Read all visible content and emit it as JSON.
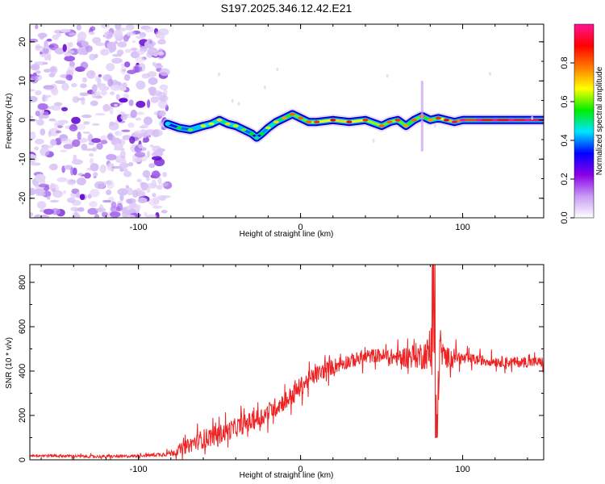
{
  "title": "S197.2025.346.12.42.E21",
  "chart_data": [
    {
      "type": "heatmap",
      "name": "spectrogram",
      "xlabel": "Height of straight line (km)",
      "ylabel": "Frequency (Hz)",
      "xlim": [
        -167,
        150
      ],
      "ylim": [
        -25,
        24.5
      ],
      "x_ticks": [
        -100,
        0,
        100
      ],
      "y_ticks": [
        -20,
        -10,
        0,
        10,
        20
      ],
      "x_tick_labels": [
        "-100",
        "0",
        "100"
      ],
      "y_tick_labels": [
        "-20",
        "-10",
        "0",
        "10",
        "20"
      ],
      "noise_region_x": [
        -167,
        -82
      ],
      "signal_trace": {
        "x": [
          -82,
          -75,
          -68,
          -60,
          -55,
          -50,
          -45,
          -40,
          -35,
          -30,
          -27,
          -24,
          -20,
          -15,
          -10,
          -5,
          0,
          5,
          10,
          20,
          30,
          40,
          50,
          55,
          60,
          65,
          70,
          75,
          80,
          85,
          90,
          95,
          100,
          110,
          120,
          130,
          140,
          150
        ],
        "freq": [
          -1,
          -2,
          -2.5,
          -1.5,
          -1,
          0,
          -1,
          -1.5,
          -2.5,
          -3.5,
          -4.5,
          -3.5,
          -2,
          -0.5,
          0.5,
          1.5,
          0.5,
          -0.5,
          -0.5,
          0,
          -0.5,
          0,
          -1.5,
          -0.5,
          0,
          -1.5,
          0,
          1,
          0,
          0.5,
          0,
          -0.5,
          0,
          0,
          0,
          0,
          0,
          0
        ],
        "amplitude": [
          0.25,
          0.35,
          0.4,
          0.45,
          0.45,
          0.5,
          0.5,
          0.45,
          0.4,
          0.35,
          0.3,
          0.35,
          0.45,
          0.5,
          0.55,
          0.6,
          0.6,
          0.6,
          0.65,
          0.7,
          0.7,
          0.65,
          0.6,
          0.6,
          0.65,
          0.55,
          0.6,
          0.6,
          0.55,
          0.65,
          0.7,
          0.75,
          0.8,
          0.85,
          0.9,
          0.9,
          0.95,
          0.95
        ]
      },
      "colorbar": {
        "label": "Normalized spectral amplitude",
        "range": [
          0,
          1
        ],
        "ticks": [
          "0.0",
          "0.2",
          "0.4",
          "0.6",
          "0.8"
        ],
        "tick_values": [
          0,
          0.2,
          0.4,
          0.6,
          0.8
        ],
        "colors": [
          "#ffffff",
          "#c89bf5",
          "#8a00e6",
          "#0000ff",
          "#00e5ff",
          "#00ee00",
          "#ffff00",
          "#ff7a00",
          "#ff0000",
          "#ff1493"
        ]
      },
      "colors": {
        "noise": "#9b59e8",
        "noise_dark": "#6a0fd0",
        "noise_light": "#d6bff5"
      }
    },
    {
      "type": "line",
      "name": "snr",
      "xlabel": "Height of straight line (km)",
      "ylabel": "SNR (10 * v/v)",
      "xlim": [
        -167,
        150
      ],
      "ylim": [
        0,
        880
      ],
      "x_ticks": [
        -100,
        0,
        100
      ],
      "y_ticks": [
        0,
        200,
        400,
        600,
        800
      ],
      "x_tick_labels": [
        "-100",
        "0",
        "100"
      ],
      "y_tick_labels": [
        "0",
        "200",
        "400",
        "600",
        "800"
      ],
      "color": "#ee2222",
      "series": [
        {
          "name": "SNR",
          "x": [
            -167,
            -150,
            -130,
            -110,
            -95,
            -85,
            -80,
            -75,
            -70,
            -65,
            -60,
            -55,
            -50,
            -45,
            -40,
            -35,
            -30,
            -25,
            -20,
            -15,
            -10,
            -5,
            0,
            5,
            10,
            15,
            20,
            25,
            30,
            35,
            40,
            45,
            50,
            55,
            60,
            65,
            70,
            75,
            78,
            80,
            82,
            83,
            84,
            86,
            88,
            90,
            95,
            100,
            110,
            120,
            130,
            140,
            150
          ],
          "y": [
            20,
            18,
            15,
            15,
            20,
            25,
            30,
            45,
            60,
            80,
            95,
            105,
            115,
            130,
            145,
            160,
            175,
            190,
            215,
            240,
            265,
            290,
            330,
            360,
            385,
            405,
            420,
            435,
            445,
            455,
            460,
            470,
            470,
            465,
            460,
            465,
            470,
            470,
            480,
            470,
            500,
            480,
            160,
            520,
            470,
            460,
            470,
            455,
            450,
            445,
            440,
            440,
            440
          ]
        }
      ],
      "noise_amplitude": [
        8,
        8,
        8,
        8,
        8,
        12,
        18,
        30,
        40,
        50,
        55,
        55,
        55,
        55,
        55,
        55,
        55,
        55,
        55,
        55,
        55,
        55,
        55,
        50,
        50,
        45,
        45,
        45,
        40,
        40,
        40,
        40,
        40,
        45,
        50,
        60,
        70,
        80,
        90,
        110,
        150,
        190,
        150,
        110,
        80,
        60,
        45,
        35,
        30,
        30,
        30,
        30,
        30
      ]
    }
  ]
}
